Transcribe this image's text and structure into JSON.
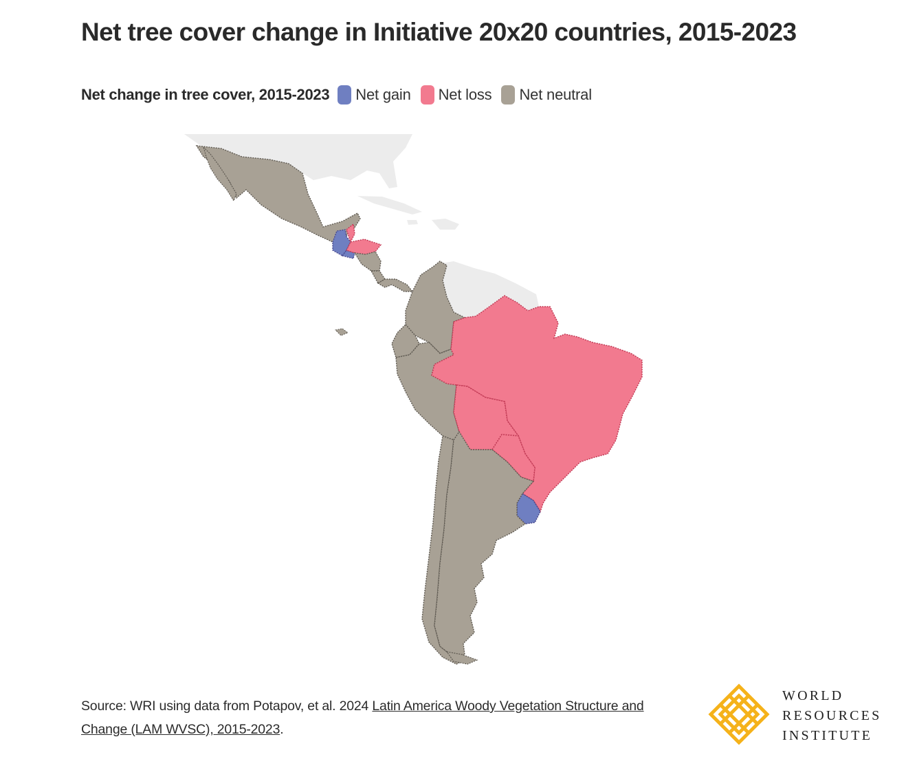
{
  "title": "Net tree cover change in Initiative 20x20 countries, 2015-2023",
  "legend": {
    "title": "Net change in tree cover, 2015-2023",
    "items": [
      {
        "label": "Net gain",
        "color": "#6f7fc1"
      },
      {
        "label": "Net loss",
        "color": "#f27a8f"
      },
      {
        "label": "Net neutral",
        "color": "#a8a195"
      }
    ]
  },
  "map": {
    "colors": {
      "gain": "#6f7fc1",
      "loss": "#f27a8f",
      "neutral": "#a8a195",
      "other": "#ececec"
    },
    "regions": [
      {
        "name": "Mexico",
        "category": "neutral"
      },
      {
        "name": "Guatemala",
        "category": "gain"
      },
      {
        "name": "Belize",
        "category": "loss"
      },
      {
        "name": "Honduras",
        "category": "loss"
      },
      {
        "name": "El Salvador",
        "category": "gain"
      },
      {
        "name": "Nicaragua",
        "category": "neutral"
      },
      {
        "name": "Costa Rica",
        "category": "neutral"
      },
      {
        "name": "Panama",
        "category": "neutral"
      },
      {
        "name": "Colombia",
        "category": "neutral"
      },
      {
        "name": "Ecuador",
        "category": "neutral"
      },
      {
        "name": "Peru",
        "category": "neutral"
      },
      {
        "name": "Brazil",
        "category": "loss"
      },
      {
        "name": "Bolivia",
        "category": "loss"
      },
      {
        "name": "Paraguay",
        "category": "loss"
      },
      {
        "name": "Uruguay",
        "category": "gain"
      },
      {
        "name": "Chile",
        "category": "neutral"
      },
      {
        "name": "Argentina",
        "category": "neutral"
      }
    ]
  },
  "source": {
    "prefix": "Source: WRI using data from Potapov, et al. 2024 ",
    "link_text": "Latin America Woody Vegetation Structure and Change (LAM WVSC), 2015-2023",
    "suffix": "."
  },
  "logo": {
    "line1": "WORLD",
    "line2": "RESOURCES",
    "line3": "INSTITUTE",
    "color": "#f5b21a"
  }
}
